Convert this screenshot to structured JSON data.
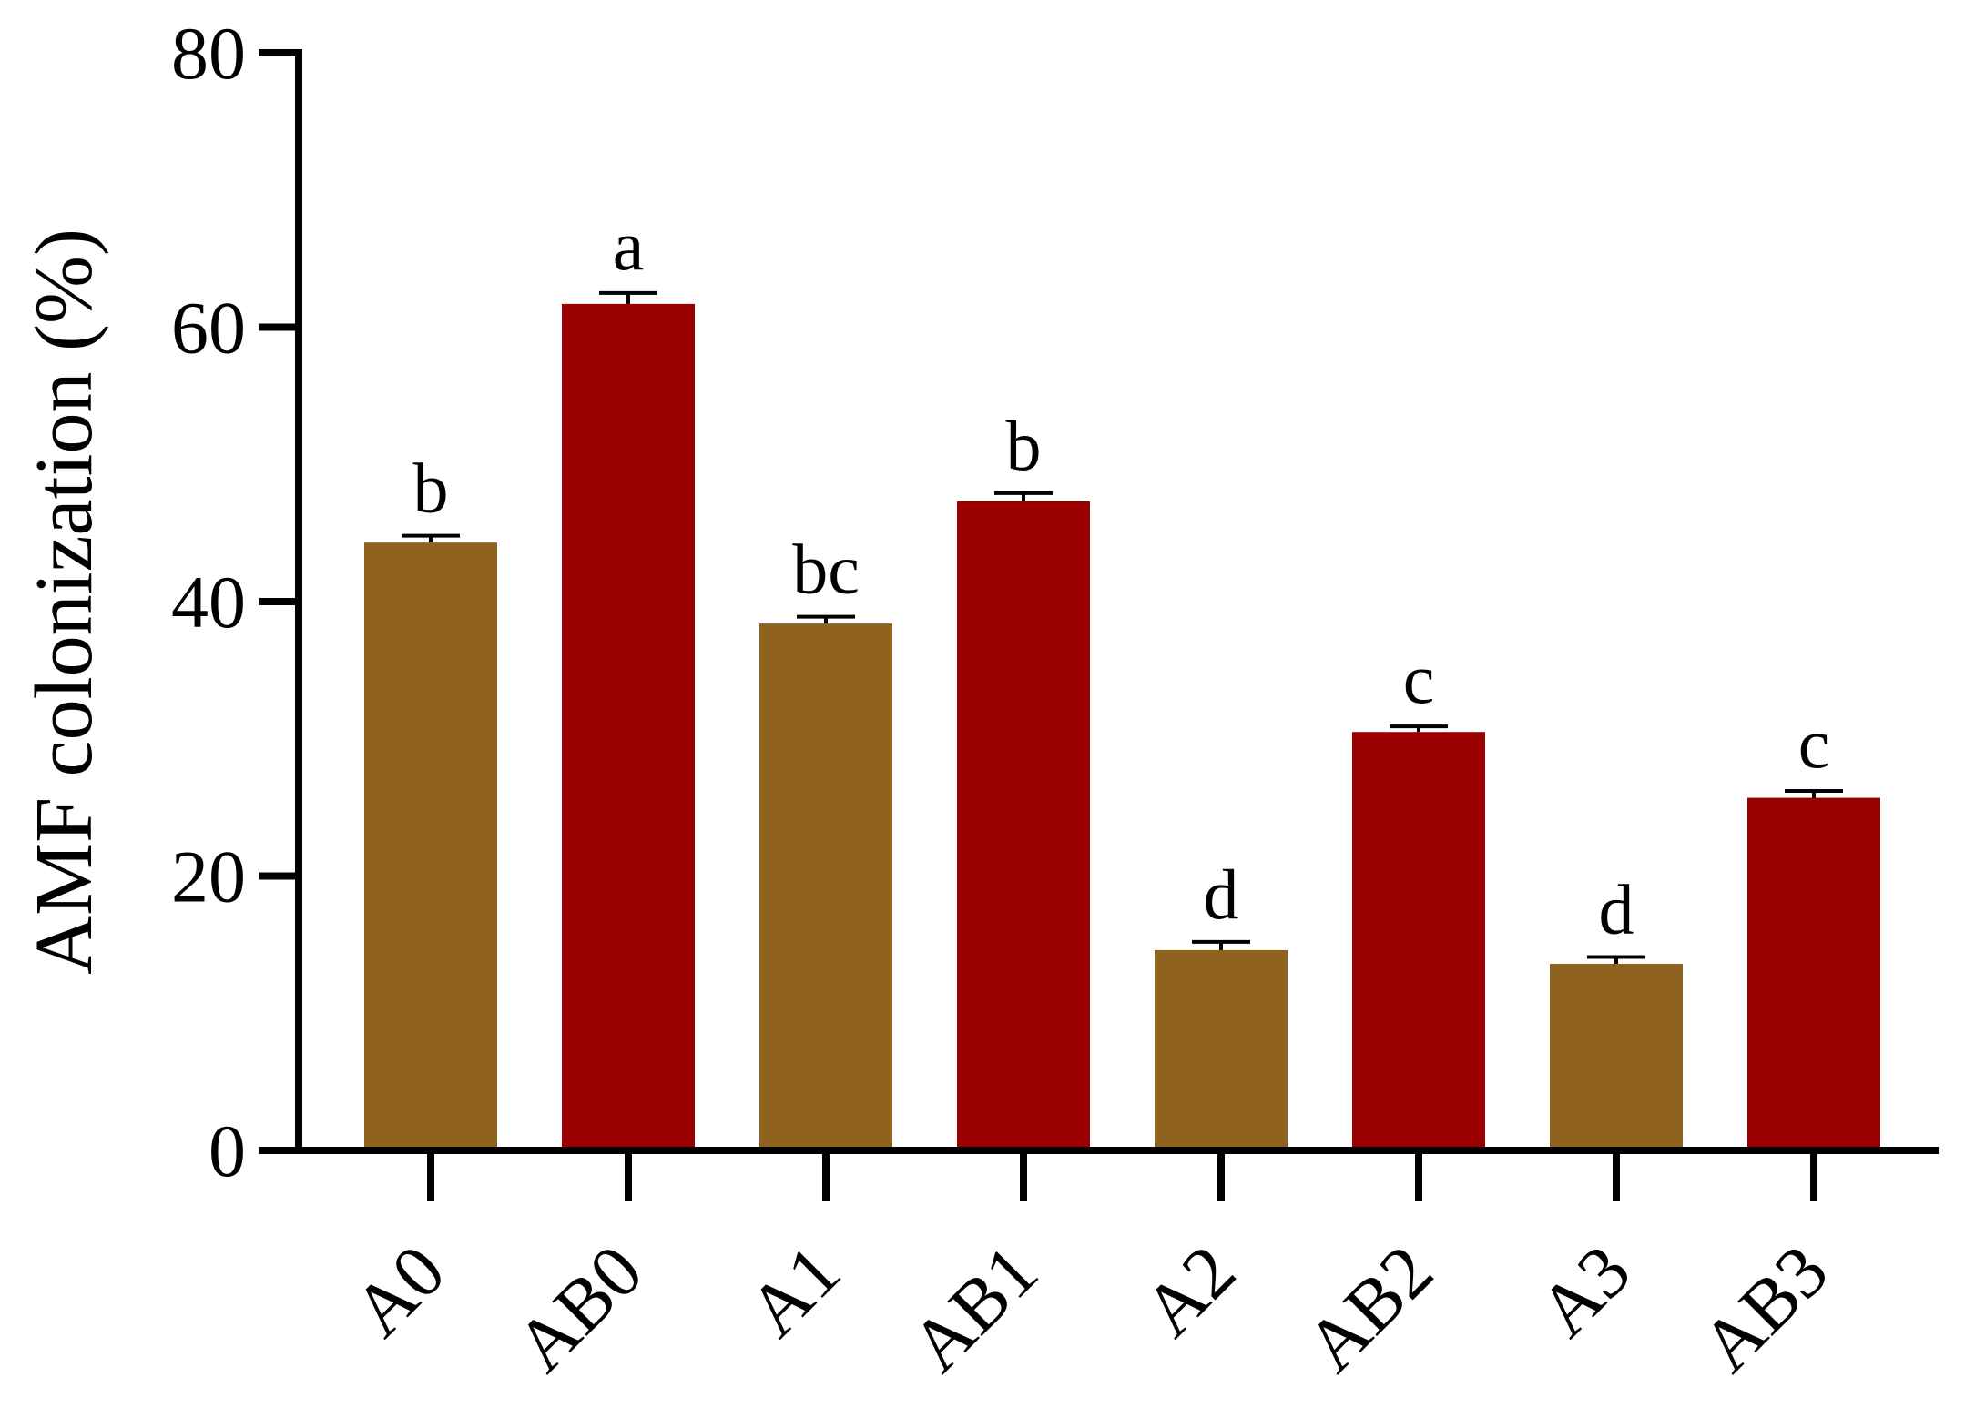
{
  "chart_data": {
    "type": "bar",
    "title": "",
    "xlabel": "",
    "ylabel": "AMF colonization (%)",
    "ylim": [
      0,
      80
    ],
    "yticks": [
      0,
      20,
      40,
      60,
      80
    ],
    "categories": [
      "A0",
      "AB0",
      "A1",
      "AB1",
      "A2",
      "AB2",
      "A3",
      "AB3"
    ],
    "values": [
      44.3,
      61.7,
      38.4,
      47.3,
      14.6,
      30.5,
      13.6,
      25.7
    ],
    "errors": [
      0.5,
      0.8,
      0.5,
      0.6,
      0.6,
      0.4,
      0.5,
      0.5
    ],
    "significance": [
      "b",
      "a",
      "bc",
      "b",
      "d",
      "c",
      "d",
      "c"
    ],
    "bar_colors": [
      "#8f6220",
      "#9b0000",
      "#8f6220",
      "#9b0000",
      "#8f6220",
      "#9b0000",
      "#8f6220",
      "#9b0000"
    ],
    "grid": false,
    "legend": "none"
  }
}
